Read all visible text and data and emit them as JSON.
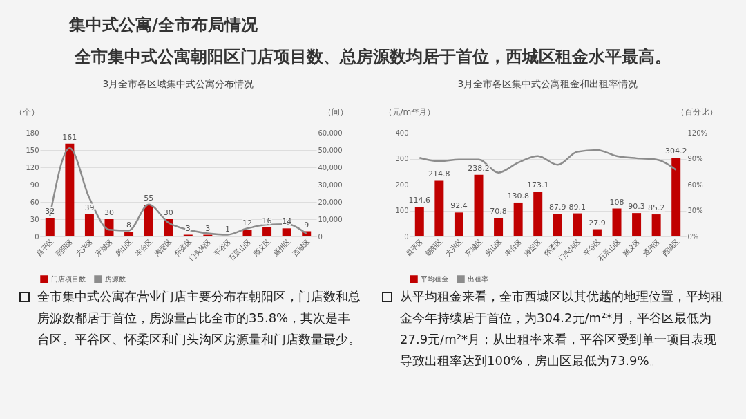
{
  "chart_data": [
    {
      "type": "bar",
      "title": "3月全市各区域集中式公寓分布情况",
      "ylabel": "（个）",
      "y2label": "（间）",
      "categories": [
        "昌平区",
        "朝阳区",
        "大兴区",
        "东城区",
        "房山区",
        "丰台区",
        "海淀区",
        "怀柔区",
        "门头沟区",
        "平谷区",
        "石景山区",
        "顺义区",
        "通州区",
        "西城区"
      ],
      "series": [
        {
          "name": "门店项目数",
          "color": "#c00000",
          "values": [
            32,
            161,
            39,
            30,
            8,
            55,
            30,
            3,
            3,
            1,
            12,
            16,
            14,
            9
          ],
          "value_labels": [
            "32",
            "161",
            "39",
            "30",
            "8",
            "55",
            "30",
            "3",
            "3",
            "1",
            "12",
            "16",
            "14",
            "9"
          ]
        },
        {
          "name": "房源数",
          "type": "line",
          "axis": "y2",
          "color": "#8c8c8c",
          "values": [
            12000,
            51100,
            22200,
            3900,
            3400,
            18500,
            8000,
            3900,
            1800,
            1000,
            4700,
            6800,
            7100,
            1600
          ]
        }
      ],
      "ylim": [
        0,
        180
      ],
      "yticks": [
        0,
        30,
        60,
        90,
        120,
        150,
        180
      ],
      "y2lim": [
        0,
        60000
      ],
      "y2ticks": [
        0,
        {
          "value": 10000,
          "label": "10,000"
        },
        {
          "value": 20000,
          "label": "20,000"
        },
        {
          "value": 30000,
          "label": "30,000"
        },
        {
          "value": 40000,
          "label": "40,000"
        },
        {
          "value": 50000,
          "label": "50,000"
        },
        {
          "value": 60000,
          "label": "60,000"
        }
      ],
      "grid": "y",
      "legend": "bottom",
      "annotations": [
        "集中式公寓/全市布局情况",
        "全市集中式公寓朝阳区门店项目数、总房源数均居于首位，西城区租金水平最高。",
        "全市集中式公寓在营业门店主要分布在朝阳区，门店数和总房源数都居于首位，房源量占比全市的35.8%，其次是丰台区。平谷区、怀柔区和门头沟区房源量和门店数量最少。"
      ]
    },
    {
      "type": "bar",
      "title": "3月全市各区集中式公寓租金和出租率情况",
      "ylabel": "（元/m²*月）",
      "y2label": "（百分比）",
      "categories": [
        "昌平区",
        "朝阳区",
        "大兴区",
        "东城区",
        "房山区",
        "丰台区",
        "海淀区",
        "怀柔区",
        "门头沟区",
        "平谷区",
        "石景山区",
        "顺义区",
        "通州区",
        "西城区"
      ],
      "series": [
        {
          "name": "平均租金",
          "color": "#c00000",
          "values": [
            114.6,
            214.8,
            92.4,
            238.2,
            70.8,
            130.8,
            173.1,
            87.9,
            89.1,
            27.9,
            108,
            90.3,
            85.2,
            304.2
          ],
          "value_labels": [
            "114.6",
            "214.8",
            "92.4",
            "238.2",
            "70.8",
            "130.8",
            "173.1",
            "87.9",
            "89.1",
            "27.9",
            "108",
            "90.3",
            "85.2",
            "304.2"
          ]
        },
        {
          "name": "出租率",
          "type": "line",
          "axis": "y2",
          "color": "#8c8c8c",
          "values": [
            91,
            87,
            89,
            89,
            73.9,
            85.5,
            93,
            83,
            98,
            100,
            93,
            90.5,
            89,
            77
          ]
        }
      ],
      "ylim": [
        0,
        400
      ],
      "yticks": [
        0,
        100,
        200,
        300,
        400
      ],
      "y2lim": [
        0,
        120
      ],
      "y2ticks": [
        {
          "value": 0,
          "label": "0%"
        },
        {
          "value": 30,
          "label": "30%"
        },
        {
          "value": 60,
          "label": "60%"
        },
        {
          "value": 90,
          "label": "90%"
        },
        {
          "value": 120,
          "label": "120%"
        }
      ],
      "grid": "y",
      "legend": "bottom",
      "annotations": [
        "从平均租金来看，全市西城区以其优越的地理位置，平均租金今年持续居于首位，为304.2元/m²*月，平谷区最低为27.9元/m²*月；从出租率来看，平谷区受到单一项目表现导致出租率达到100%，房山区最低为73.9%。"
      ]
    }
  ]
}
